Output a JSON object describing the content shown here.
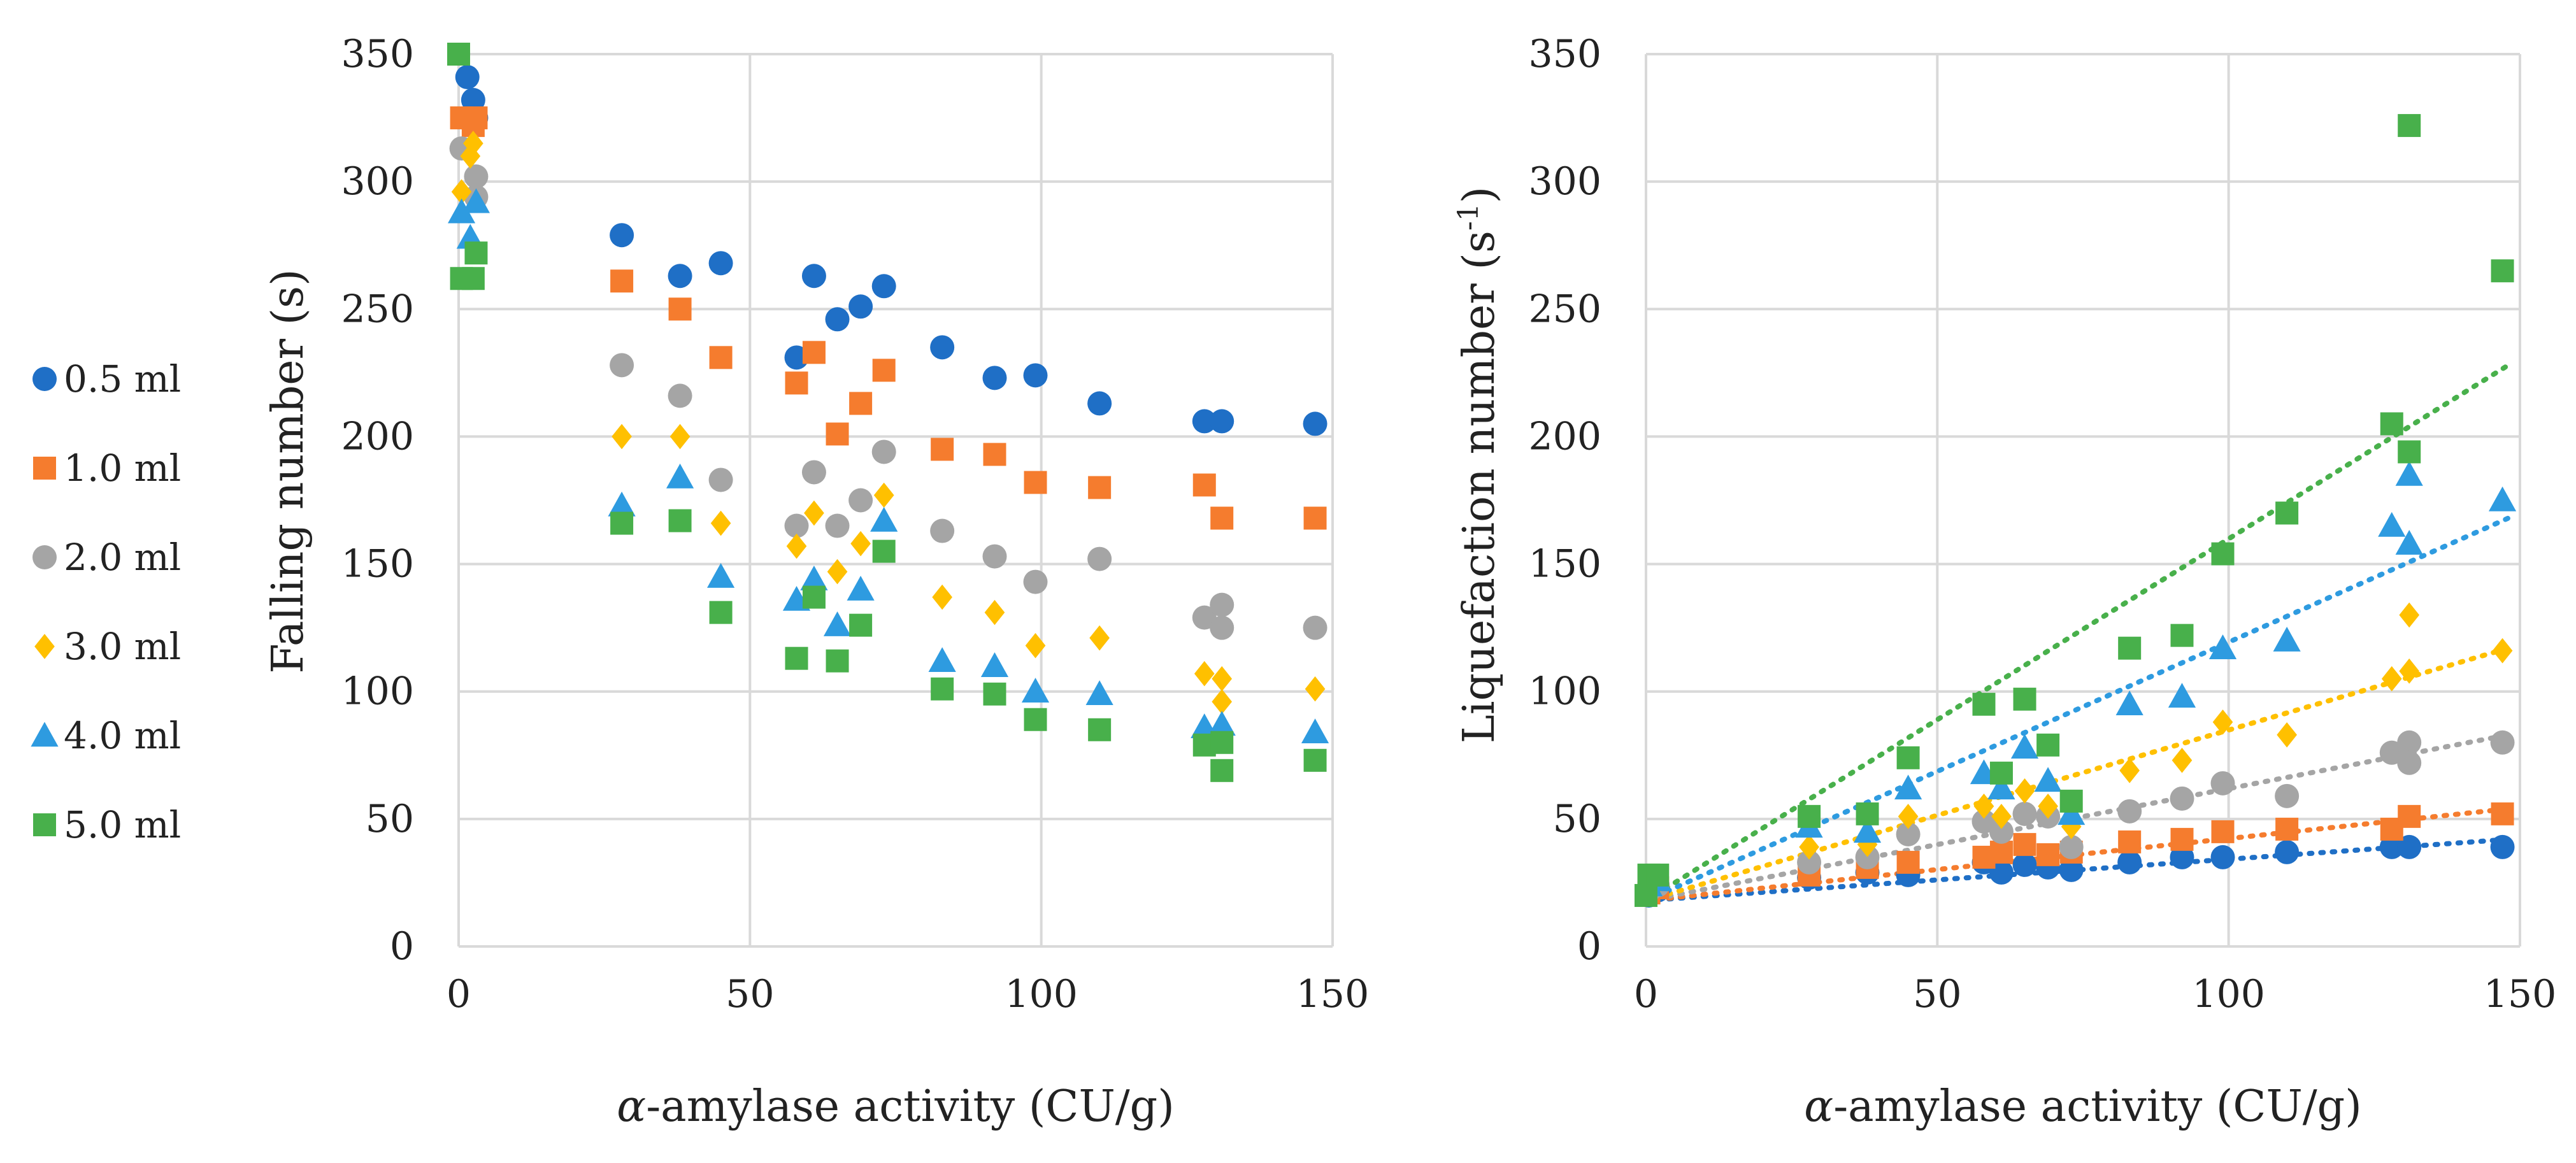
{
  "series_styles": [
    {
      "name": "0.5 ml",
      "color": "#1f6fc6",
      "marker": "circle"
    },
    {
      "name": "1.0 ml",
      "color": "#f57c2e",
      "marker": "square"
    },
    {
      "name": "2.0 ml",
      "color": "#a5a5a5",
      "marker": "circle"
    },
    {
      "name": "3.0 ml",
      "color": "#ffc000",
      "marker": "diamond"
    },
    {
      "name": "4.0 ml",
      "color": "#2e9be0",
      "marker": "triangle"
    },
    {
      "name": "5.0 ml",
      "color": "#48b04b",
      "marker": "square"
    }
  ],
  "chart_data": [
    {
      "type": "scatter",
      "title": "",
      "xlabel_greek": "α",
      "xlabel_rest": "-amylase activity (CU/g)",
      "ylabel": "Falling number (s)",
      "xlim": [
        0,
        150
      ],
      "ylim": [
        0,
        350
      ],
      "xticks": [
        0,
        50,
        100,
        150
      ],
      "yticks": [
        0,
        50,
        100,
        150,
        200,
        250,
        300,
        350
      ],
      "grid": true,
      "series": [
        {
          "name": "0.5 ml",
          "x": [
            1.5,
            2.5,
            3,
            28,
            38,
            45,
            58,
            61,
            65,
            69,
            73,
            83,
            92,
            99,
            110,
            128,
            131,
            147
          ],
          "y": [
            341,
            332,
            325,
            279,
            263,
            268,
            231,
            263,
            246,
            251,
            259,
            235,
            223,
            224,
            213,
            206,
            206,
            205
          ]
        },
        {
          "name": "1.0 ml",
          "x": [
            0.5,
            2.5,
            3,
            28,
            38,
            45,
            58,
            61,
            65,
            69,
            73,
            83,
            92,
            99,
            110,
            128,
            131,
            147
          ],
          "y": [
            325,
            322,
            325,
            261,
            250,
            231,
            221,
            233,
            201,
            213,
            226,
            195,
            193,
            182,
            180,
            181,
            168,
            168
          ]
        },
        {
          "name": "2.0 ml",
          "x": [
            0.5,
            3,
            3,
            28,
            38,
            45,
            58,
            61,
            65,
            69,
            73,
            83,
            92,
            99,
            110,
            128,
            131,
            131,
            147
          ],
          "y": [
            313,
            302,
            294,
            228,
            216,
            183,
            165,
            186,
            165,
            175,
            194,
            163,
            153,
            143,
            152,
            129,
            134,
            125,
            125
          ]
        },
        {
          "name": "3.0 ml",
          "x": [
            0.5,
            2,
            2.5,
            28,
            38,
            45,
            58,
            61,
            65,
            69,
            73,
            83,
            92,
            99,
            110,
            128,
            131,
            131,
            147
          ],
          "y": [
            296,
            310,
            315,
            200,
            200,
            166,
            157,
            170,
            147,
            158,
            177,
            137,
            131,
            118,
            121,
            107,
            105,
            96,
            101
          ]
        },
        {
          "name": "4.0 ml",
          "x": [
            0.5,
            2,
            3,
            28,
            38,
            45,
            58,
            61,
            65,
            69,
            73,
            83,
            92,
            99,
            110,
            128,
            131,
            147
          ],
          "y": [
            288,
            278,
            292,
            173,
            184,
            145,
            136,
            144,
            126,
            140,
            167,
            112,
            110,
            100,
            99,
            86,
            87,
            84
          ]
        },
        {
          "name": "5.0 ml",
          "x": [
            0,
            0.5,
            2.5,
            3,
            28,
            38,
            45,
            58,
            61,
            65,
            69,
            73,
            83,
            92,
            99,
            110,
            128,
            131,
            131,
            147
          ],
          "y": [
            350,
            262,
            262,
            272,
            166,
            167,
            131,
            113,
            137,
            112,
            126,
            155,
            101,
            99,
            89,
            85,
            79,
            80,
            69,
            73
          ]
        }
      ]
    },
    {
      "type": "scatter",
      "title": "",
      "xlabel_greek": "α",
      "xlabel_rest": "-amylase activity (CU/g)",
      "ylabel": "Liquefaction number (s",
      "ylabel_sup": "-1",
      "ylabel_end": ")",
      "xlim": [
        0,
        150
      ],
      "ylim": [
        0,
        350
      ],
      "xticks": [
        0,
        50,
        100,
        150
      ],
      "yticks": [
        0,
        50,
        100,
        150,
        200,
        250,
        300,
        350
      ],
      "grid": true,
      "trendlines": "linear, dotted",
      "series": [
        {
          "name": "0.5 ml",
          "x": [
            0.5,
            2,
            28,
            38,
            45,
            58,
            61,
            65,
            69,
            73,
            83,
            92,
            99,
            110,
            128,
            131,
            147
          ],
          "y": [
            20,
            22,
            27,
            29,
            28,
            33,
            29,
            32,
            31,
            30,
            33,
            35,
            35,
            37,
            39,
            39,
            39
          ],
          "trend": [
            [
              0,
              18
            ],
            [
              148,
              42
            ]
          ]
        },
        {
          "name": "1.0 ml",
          "x": [
            0.5,
            2,
            28,
            38,
            45,
            58,
            61,
            65,
            69,
            73,
            83,
            92,
            99,
            110,
            128,
            131,
            147
          ],
          "y": [
            21,
            23,
            28,
            31,
            33,
            35,
            37,
            40,
            36,
            37,
            41,
            42,
            45,
            46,
            46,
            51,
            52
          ],
          "trend": [
            [
              0,
              18
            ],
            [
              148,
              54
            ]
          ]
        },
        {
          "name": "2.0 ml",
          "x": [
            0.5,
            2,
            28,
            38,
            45,
            58,
            61,
            65,
            69,
            73,
            83,
            92,
            99,
            110,
            128,
            131,
            131,
            147
          ],
          "y": [
            22,
            24,
            33,
            35,
            44,
            49,
            45,
            52,
            51,
            39,
            53,
            58,
            64,
            59,
            76,
            80,
            72,
            80
          ],
          "trend": [
            [
              0,
              18
            ],
            [
              148,
              83
            ]
          ]
        },
        {
          "name": "3.0 ml",
          "x": [
            0.5,
            2,
            28,
            38,
            45,
            58,
            61,
            65,
            69,
            73,
            83,
            92,
            99,
            110,
            128,
            131,
            131,
            147
          ],
          "y": [
            23,
            25,
            39,
            40,
            51,
            55,
            51,
            61,
            55,
            47,
            69,
            73,
            88,
            83,
            105,
            108,
            130,
            116
          ],
          "trend": [
            [
              0,
              18
            ],
            [
              148,
              117
            ]
          ]
        },
        {
          "name": "4.0 ml",
          "x": [
            0.5,
            2,
            28,
            38,
            45,
            58,
            61,
            65,
            69,
            73,
            83,
            92,
            99,
            110,
            128,
            131,
            131,
            147
          ],
          "y": [
            24,
            26,
            47,
            45,
            62,
            68,
            62,
            78,
            65,
            52,
            95,
            98,
            117,
            120,
            165,
            158,
            185,
            175
          ],
          "trend": [
            [
              0,
              18
            ],
            [
              148,
              168
            ]
          ]
        },
        {
          "name": "5.0 ml",
          "x": [
            0,
            0.5,
            2,
            28,
            38,
            45,
            58,
            61,
            65,
            69,
            73,
            83,
            92,
            99,
            110,
            128,
            131,
            131,
            147
          ],
          "y": [
            20,
            28,
            28,
            51,
            52,
            74,
            95,
            68,
            97,
            79,
            57,
            117,
            122,
            154,
            170,
            205,
            194,
            322,
            265
          ],
          "trend": [
            [
              0,
              18
            ],
            [
              148,
              228
            ]
          ]
        }
      ]
    }
  ]
}
